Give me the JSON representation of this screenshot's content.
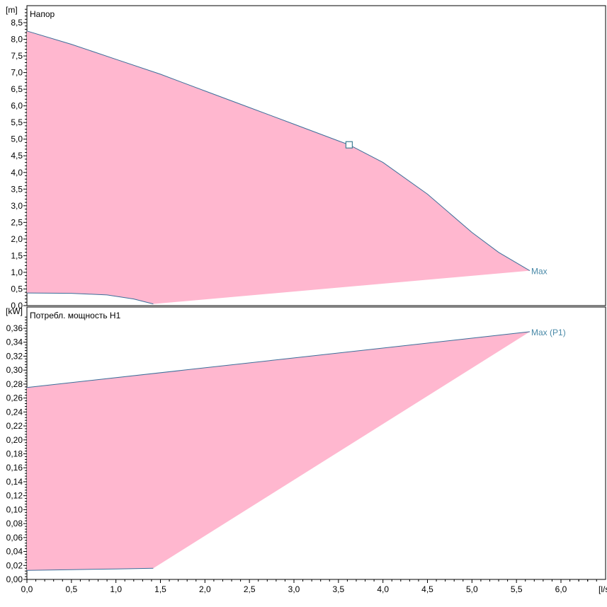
{
  "chart_data": [
    {
      "type": "area",
      "title": "Напор",
      "ylabel": "[m]",
      "xlabel": "",
      "xlim": [
        0,
        6.5
      ],
      "ylim": [
        0,
        8.8
      ],
      "yticks": [
        "0,0",
        "0,5",
        "1,0",
        "1,5",
        "2,0",
        "2,5",
        "3,0",
        "3,5",
        "4,0",
        "4,5",
        "5,0",
        "5,5",
        "6,0",
        "6,5",
        "7,0",
        "7,5",
        "8,0",
        "8,5"
      ],
      "y_tick_step": 0.5,
      "curve_max": {
        "label": "Max",
        "x": [
          0,
          0.5,
          1.0,
          1.5,
          2.0,
          2.5,
          3.0,
          3.5,
          3.62,
          4.0,
          4.5,
          5.0,
          5.3,
          5.65
        ],
        "y": [
          8.25,
          7.85,
          7.4,
          6.95,
          6.45,
          5.95,
          5.45,
          4.95,
          4.83,
          4.3,
          3.35,
          2.2,
          1.6,
          1.05
        ]
      },
      "curve_min": {
        "x": [
          0,
          0.5,
          0.9,
          1.2,
          1.42
        ],
        "y": [
          0.38,
          0.37,
          0.32,
          0.2,
          0.05
        ]
      },
      "operating_point": {
        "x": 3.62,
        "y": 4.83
      },
      "fill_color": "#ffb7cf",
      "line_color": "#3b6e9a",
      "label_color": "#4a8aa8",
      "grid": false
    },
    {
      "type": "area",
      "title": "Потребл. мощность Н1",
      "ylabel": "[kW]",
      "xlabel": "[l/s]",
      "xlim": [
        0,
        6.5
      ],
      "ylim": [
        0,
        0.38
      ],
      "yticks": [
        "0,00",
        "0,02",
        "0,04",
        "0,06",
        "0,08",
        "0,10",
        "0,12",
        "0,14",
        "0,16",
        "0,18",
        "0,20",
        "0,22",
        "0,24",
        "0,26",
        "0,28",
        "0,30",
        "0,32",
        "0,34",
        "0,36"
      ],
      "y_tick_step": 0.02,
      "curve_max": {
        "label": "Max (P1)",
        "x": [
          0,
          5.65
        ],
        "y": [
          0.275,
          0.355
        ]
      },
      "curve_min": {
        "x": [
          0,
          0.5,
          1.0,
          1.42
        ],
        "y": [
          0.013,
          0.014,
          0.015,
          0.016
        ]
      },
      "fill_color": "#ffb7cf",
      "line_color": "#3b6e9a",
      "label_color": "#4a8aa8",
      "grid": false
    }
  ],
  "xticks": [
    "0,0",
    "0,5",
    "1,0",
    "1,5",
    "2,0",
    "2,5",
    "3,0",
    "3,5",
    "4,0",
    "4,5",
    "5,0",
    "5,5",
    "6,0"
  ],
  "x_tick_step": 0.5
}
